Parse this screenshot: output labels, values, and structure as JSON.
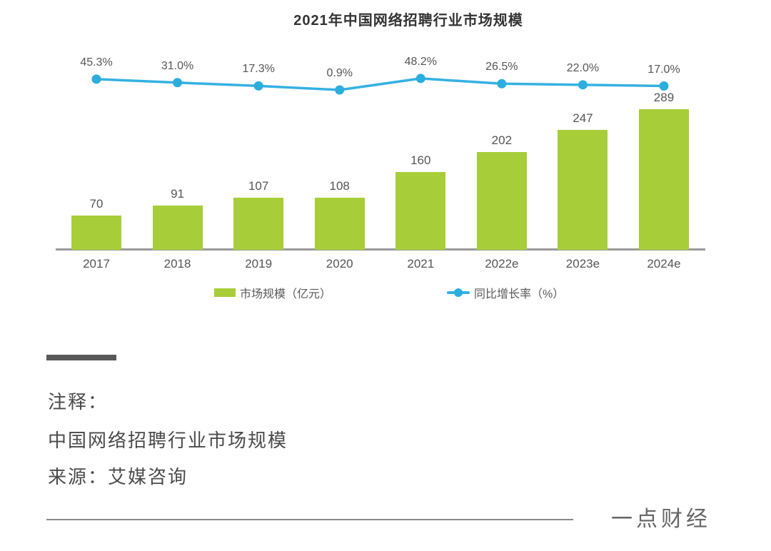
{
  "chart_data": {
    "type": "bar",
    "combo": "bar+line",
    "title": "2021年中国网络招聘行业市场规模",
    "categories": [
      "2017",
      "2018",
      "2019",
      "2020",
      "2021",
      "2022e",
      "2023e",
      "2024e"
    ],
    "series": [
      {
        "name": "市场规模（亿元）",
        "type": "bar",
        "values": [
          70,
          91,
          107,
          108,
          160,
          202,
          247,
          289
        ],
        "color": "#a7ce39"
      },
      {
        "name": "同比增长率（%）",
        "type": "line",
        "values": [
          45.3,
          31.0,
          17.3,
          0.9,
          48.2,
          26.5,
          22.0,
          17.0
        ],
        "labels": [
          "45.3%",
          "31.0%",
          "17.3%",
          "0.9%",
          "48.2%",
          "26.5%",
          "22.0%",
          "17.0%"
        ],
        "color": "#35b1e2",
        "marker_color": "#2badde"
      }
    ],
    "xlabel": "",
    "ylabel": "",
    "grid": false,
    "legend_position": "bottom",
    "axis_color": "#9a9a9a"
  },
  "footer": {
    "note_label": "注释：",
    "note_line": "中国网络招聘行业市场规模",
    "source": "来源：艾媒咨询",
    "brand": "一点财经"
  }
}
